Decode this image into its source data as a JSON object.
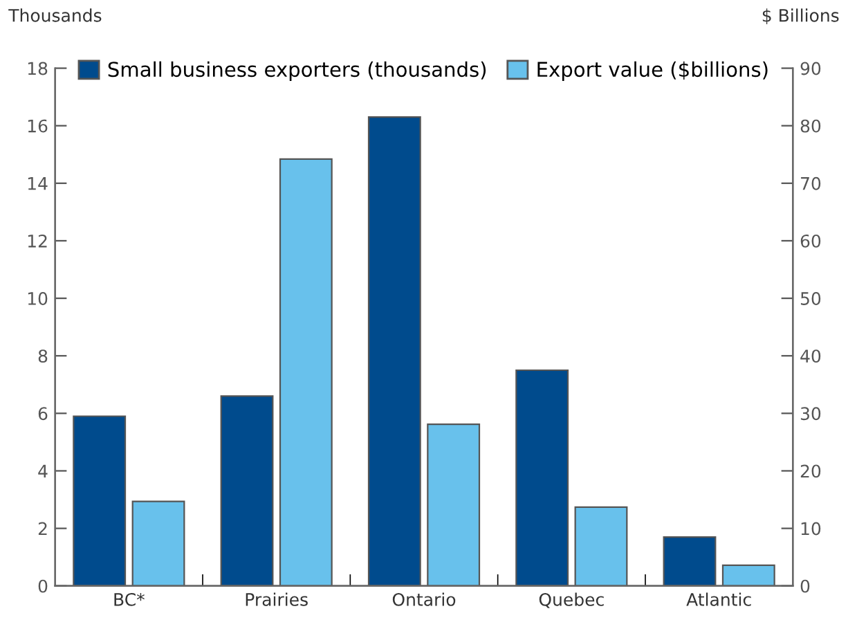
{
  "chart_data": {
    "type": "bar",
    "ylabel": "Thousands",
    "y2label": "$ Billions",
    "categories": [
      "BC*",
      "Prairies",
      "Ontario",
      "Quebec",
      "Atlantic"
    ],
    "series": [
      {
        "name": "Small business exporters (thousands)",
        "color": "#004b8d",
        "values": [
          5.9,
          6.6,
          16.3,
          7.5,
          1.7
        ]
      },
      {
        "name": "Export value ($billions)",
        "color": "#68c1ec",
        "axis": "y2",
        "values": [
          14.7,
          74.2,
          28.1,
          13.7,
          3.6
        ]
      }
    ],
    "ylim": [
      0,
      18
    ],
    "yticks": [
      0,
      2,
      4,
      6,
      8,
      10,
      12,
      14,
      16,
      18
    ],
    "y2lim": [
      0,
      90
    ],
    "y2ticks": [
      0,
      10,
      20,
      30,
      40,
      50,
      60,
      70,
      80,
      90
    ],
    "grid": false,
    "legend": "top"
  }
}
